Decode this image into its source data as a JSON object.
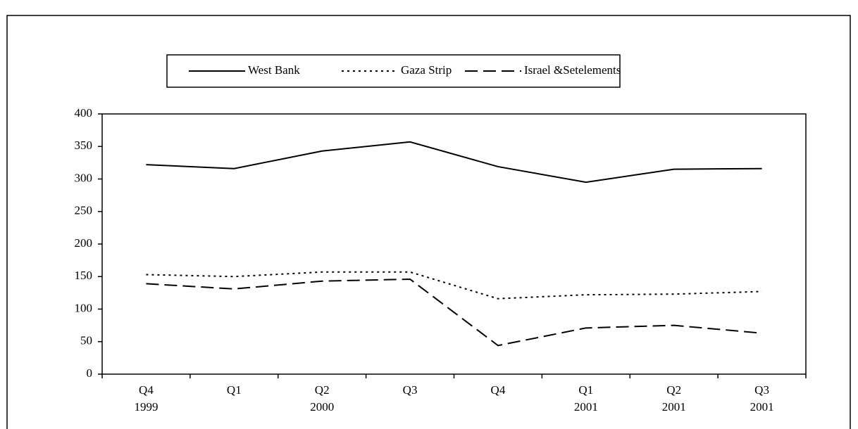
{
  "chart_data": {
    "type": "line",
    "categories": [
      [
        "Q4",
        "1999"
      ],
      [
        "Q1"
      ],
      [
        "Q2",
        "2000"
      ],
      [
        "Q3"
      ],
      [
        "Q4"
      ],
      [
        "Q1",
        "2001"
      ],
      [
        "Q2",
        "2001"
      ],
      [
        "Q3",
        "2001"
      ]
    ],
    "series": [
      {
        "name": "West Bank",
        "color": "#000000",
        "dash": "solid",
        "values": [
          322,
          316,
          343,
          357,
          319,
          295,
          315,
          316
        ]
      },
      {
        "name": "Gaza Strip",
        "color": "#000000",
        "dash": "dotted",
        "values": [
          153,
          150,
          157,
          157,
          116,
          122,
          123,
          127
        ]
      },
      {
        "name": "Israel &Setelements",
        "color": "#000000",
        "dash": "dashed",
        "values": [
          139,
          131,
          143,
          146,
          44,
          71,
          75,
          63
        ]
      }
    ],
    "ylim": [
      0,
      400
    ],
    "yticks": [
      0,
      50,
      100,
      150,
      200,
      250,
      300,
      350,
      400
    ],
    "grid": false
  }
}
